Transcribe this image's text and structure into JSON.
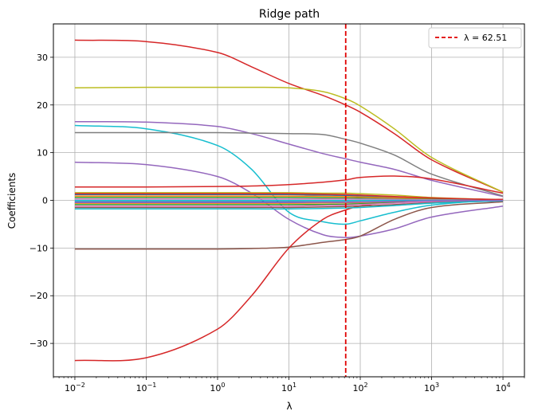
{
  "chart_data": {
    "type": "line",
    "title": "Ridge path",
    "xlabel": "λ",
    "ylabel": "Coefficients",
    "xscale": "log",
    "xlim": [
      0.005,
      20000
    ],
    "ylim": [
      -37,
      37
    ],
    "grid": true,
    "legend_position": "top-right",
    "x_ticks": [
      {
        "value": 0.01,
        "base": "10",
        "exp": "−2"
      },
      {
        "value": 0.1,
        "base": "10",
        "exp": "−1"
      },
      {
        "value": 1,
        "base": "10",
        "exp": "0"
      },
      {
        "value": 10,
        "base": "10",
        "exp": "1"
      },
      {
        "value": 100,
        "base": "10",
        "exp": "2"
      },
      {
        "value": 1000,
        "base": "10",
        "exp": "3"
      },
      {
        "value": 10000,
        "base": "10",
        "exp": "4"
      }
    ],
    "y_ticks": [
      {
        "value": 30,
        "label": "30"
      },
      {
        "value": 20,
        "label": "20"
      },
      {
        "value": 10,
        "label": "10"
      },
      {
        "value": 0,
        "label": "0"
      },
      {
        "value": -10,
        "label": "−10"
      },
      {
        "value": -20,
        "label": "−20"
      },
      {
        "value": -30,
        "label": "−30"
      }
    ],
    "vline": {
      "x": 62.51,
      "label": "λ = 62.51",
      "color": "#e00000",
      "style": "dashed"
    },
    "x": [
      0.01,
      0.1,
      1,
      3,
      10,
      30,
      62.51,
      100,
      300,
      1000,
      10000
    ],
    "series": [
      {
        "color": "#d62728",
        "values": [
          33.6,
          33.3,
          31.0,
          28.0,
          24.5,
          22.0,
          20.0,
          18.5,
          14.0,
          8.5,
          1.7
        ]
      },
      {
        "color": "#bcbd22",
        "values": [
          23.6,
          23.7,
          23.7,
          23.7,
          23.6,
          22.8,
          21.3,
          19.8,
          15.0,
          9.0,
          1.7
        ]
      },
      {
        "color": "#9467bd",
        "values": [
          16.5,
          16.4,
          15.5,
          14.0,
          11.8,
          9.8,
          8.7,
          8.0,
          6.5,
          4.2,
          0.8
        ]
      },
      {
        "color": "#17becf",
        "values": [
          15.7,
          15.0,
          11.5,
          6.5,
          -2.5,
          -4.5,
          -5.0,
          -4.3,
          -2.5,
          -1.0,
          0.2
        ]
      },
      {
        "color": "#7f7f7f",
        "values": [
          14.2,
          14.2,
          14.2,
          14.1,
          14.0,
          13.8,
          12.8,
          12.0,
          9.5,
          5.5,
          0.9
        ]
      },
      {
        "color": "#9467bd",
        "values": [
          8.0,
          7.5,
          5.0,
          1.5,
          -4.0,
          -7.2,
          -7.8,
          -7.5,
          -6.0,
          -3.5,
          -1.2
        ]
      },
      {
        "color": "#d62728",
        "values": [
          2.8,
          2.8,
          2.9,
          3.0,
          3.3,
          3.8,
          4.3,
          4.8,
          5.1,
          4.5,
          1.5
        ]
      },
      {
        "color": "#8c564b",
        "values": [
          -10.2,
          -10.2,
          -10.2,
          -10.1,
          -9.8,
          -8.8,
          -8.2,
          -7.5,
          -4.0,
          -1.5,
          -0.3
        ]
      },
      {
        "color": "#d62728",
        "values": [
          -33.6,
          -33.0,
          -27.0,
          -20.0,
          -10.0,
          -4.0,
          -2.0,
          -1.2,
          -0.3,
          0.3,
          0.2
        ]
      },
      {
        "color": "#1f77b4",
        "values": [
          1.2,
          1.2,
          1.2,
          1.2,
          1.2,
          1.1,
          1.0,
          0.9,
          0.6,
          0.3,
          0.1
        ]
      },
      {
        "color": "#ff7f0e",
        "values": [
          0.9,
          0.9,
          0.9,
          0.9,
          0.9,
          0.85,
          0.8,
          0.7,
          0.5,
          0.3,
          0.1
        ]
      },
      {
        "color": "#2ca02c",
        "values": [
          0.6,
          0.6,
          0.6,
          0.6,
          0.6,
          0.55,
          0.5,
          0.45,
          0.3,
          0.2,
          0.05
        ]
      },
      {
        "color": "#e377c2",
        "values": [
          0.3,
          0.3,
          0.3,
          0.3,
          0.3,
          0.3,
          0.28,
          0.25,
          0.2,
          0.1,
          0.02
        ]
      },
      {
        "color": "#bcbd22",
        "values": [
          1.6,
          1.6,
          1.6,
          1.6,
          1.6,
          1.5,
          1.5,
          1.4,
          1.1,
          0.6,
          0.1
        ]
      },
      {
        "color": "#17becf",
        "values": [
          0.0,
          0.0,
          0.0,
          0.0,
          0.0,
          0.0,
          0.0,
          0.0,
          0.0,
          0.0,
          0.0
        ]
      },
      {
        "color": "#1f77b4",
        "values": [
          -0.3,
          -0.3,
          -0.3,
          -0.3,
          -0.3,
          -0.3,
          -0.3,
          -0.28,
          -0.2,
          -0.1,
          -0.02
        ]
      },
      {
        "color": "#ff7f0e",
        "values": [
          -0.6,
          -0.6,
          -0.6,
          -0.6,
          -0.6,
          -0.55,
          -0.5,
          -0.45,
          -0.3,
          -0.2,
          -0.05
        ]
      },
      {
        "color": "#2ca02c",
        "values": [
          -0.9,
          -0.9,
          -0.9,
          -0.9,
          -0.9,
          -0.85,
          -0.8,
          -0.7,
          -0.5,
          -0.3,
          -0.1
        ]
      },
      {
        "color": "#e377c2",
        "values": [
          -1.2,
          -1.2,
          -1.2,
          -1.2,
          -1.2,
          -1.1,
          -1.0,
          -0.9,
          -0.6,
          -0.3,
          -0.1
        ]
      },
      {
        "color": "#8c564b",
        "values": [
          -1.5,
          -1.5,
          -1.5,
          -1.5,
          -1.5,
          -1.4,
          -1.3,
          -1.2,
          -0.9,
          -0.5,
          -0.1
        ]
      },
      {
        "color": "#17becf",
        "values": [
          -1.8,
          -1.8,
          -1.8,
          -1.8,
          -1.8,
          -1.7,
          -1.6,
          -1.5,
          -1.1,
          -0.6,
          -0.1
        ]
      },
      {
        "color": "#d62728",
        "values": [
          1.4,
          1.4,
          1.4,
          1.4,
          1.4,
          1.3,
          1.2,
          1.1,
          0.8,
          0.5,
          0.1
        ]
      },
      {
        "color": "#9467bd",
        "values": [
          -0.45,
          -0.45,
          -0.45,
          -0.45,
          -0.45,
          -0.4,
          -0.4,
          -0.35,
          -0.25,
          -0.1,
          -0.02
        ]
      }
    ]
  }
}
